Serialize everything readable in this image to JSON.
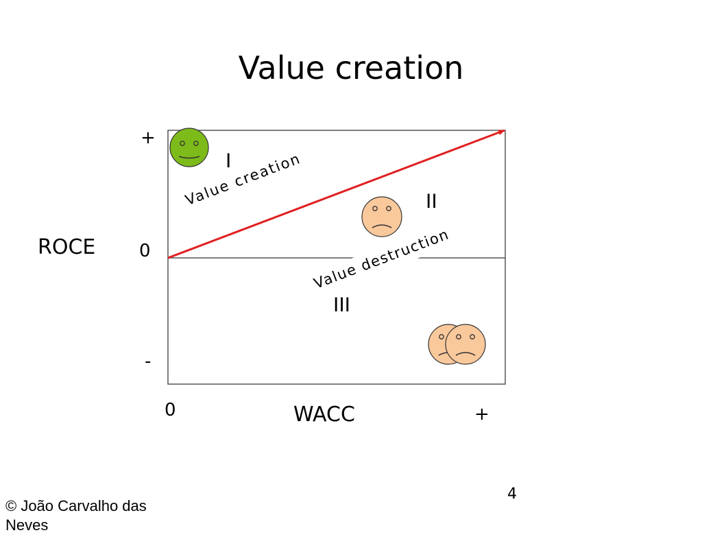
{
  "slide": {
    "title": "Value creation",
    "page_number": "4",
    "copyright": "© João Carvalho das Neves"
  },
  "diagram": {
    "y_axis": {
      "name": "ROCE",
      "top_label": "+",
      "middle_label": "0",
      "bottom_label": "-"
    },
    "x_axis": {
      "name": "WACC",
      "left_label": "0",
      "right_label": "+"
    },
    "regions": {
      "r1": "I",
      "r2": "II",
      "r3": "III"
    },
    "line_labels": {
      "above": "Value creation",
      "below": "Value destruction"
    },
    "colors": {
      "line": "#e02020",
      "happy_face": "#7dbb1a",
      "sad_face": "#f9c89b",
      "face_outline": "#333333",
      "frame": "#555555"
    },
    "icons": [
      "happy-face-icon",
      "sad-face-icon",
      "two-sad-faces-icon"
    ]
  }
}
